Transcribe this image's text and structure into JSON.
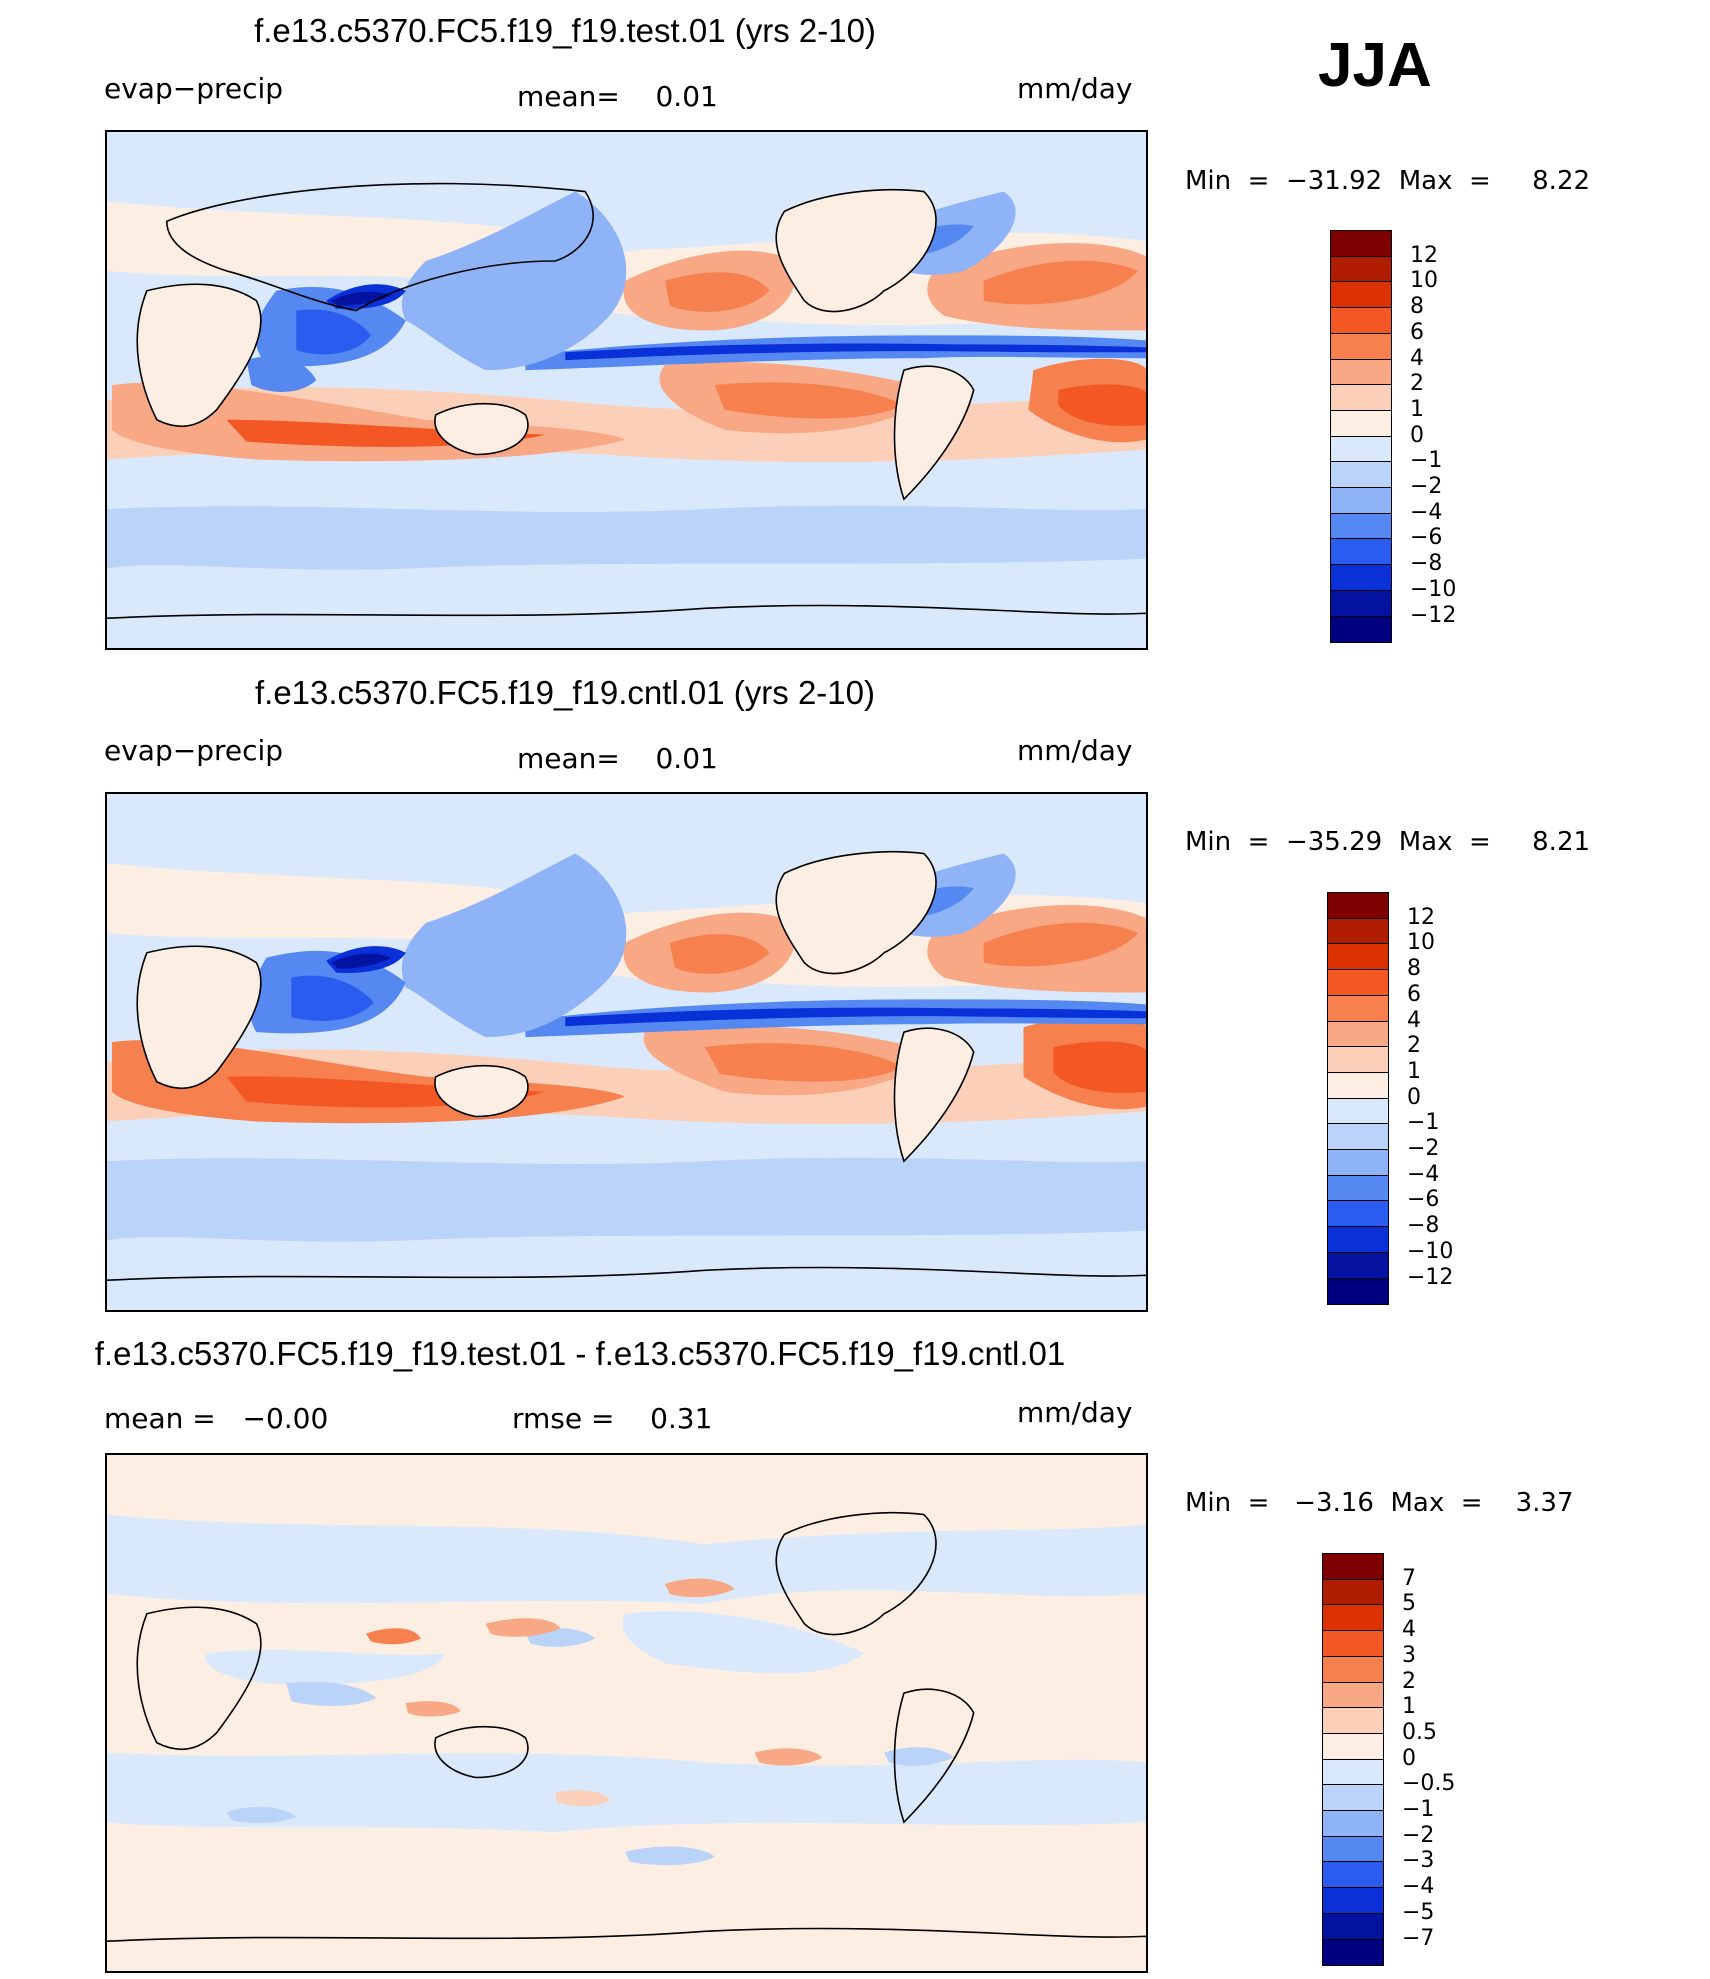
{
  "season": "JJA",
  "panels": [
    {
      "title": "f.e13.c5370.FC5.f19_f19.test.01 (yrs 2-10)",
      "left_label": "evap−precip",
      "center_label": "mean=",
      "center_value": "0.01",
      "units": "mm/day",
      "min_label": "Min",
      "min_value": "−31.92",
      "max_label": "Max",
      "max_value": "8.22",
      "colorbar_levels": [
        "12",
        "10",
        "8",
        "6",
        "4",
        "2",
        "1",
        "0",
        "−1",
        "−2",
        "−4",
        "−6",
        "−8",
        "−10",
        "−12"
      ],
      "colorbar_colors": [
        "#7f0000",
        "#b01c00",
        "#dc3100",
        "#f25724",
        "#f6804e",
        "#f8a884",
        "#fccfb9",
        "#fdeee3",
        "#d9e9fb",
        "#b9d3f9",
        "#8eb3f6",
        "#5588f1",
        "#2a5cf0",
        "#0a30d8",
        "#03139f",
        "#000080"
      ]
    },
    {
      "title": "f.e13.c5370.FC5.f19_f19.cntl.01 (yrs 2-10)",
      "left_label": "evap−precip",
      "center_label": "mean=",
      "center_value": "0.01",
      "units": "mm/day",
      "min_label": "Min",
      "min_value": "−35.29",
      "max_label": "Max",
      "max_value": "8.21",
      "colorbar_levels": [
        "12",
        "10",
        "8",
        "6",
        "4",
        "2",
        "1",
        "0",
        "−1",
        "−2",
        "−4",
        "−6",
        "−8",
        "−10",
        "−12"
      ],
      "colorbar_colors": [
        "#7f0000",
        "#b01c00",
        "#dc3100",
        "#f25724",
        "#f6804e",
        "#f8a884",
        "#fccfb9",
        "#fdeee3",
        "#d9e9fb",
        "#b9d3f9",
        "#8eb3f6",
        "#5588f1",
        "#2a5cf0",
        "#0a30d8",
        "#03139f",
        "#000080"
      ]
    },
    {
      "title": "f.e13.c5370.FC5.f19_f19.test.01 - f.e13.c5370.FC5.f19_f19.cntl.01",
      "left_label": "mean =",
      "left_value": "−0.00",
      "center_label": "rmse =",
      "center_value": "0.31",
      "units": "mm/day",
      "min_label": "Min",
      "min_value": "−3.16",
      "max_label": "Max",
      "max_value": "3.37",
      "colorbar_levels": [
        "7",
        "5",
        "4",
        "3",
        "2",
        "1",
        "0.5",
        "0",
        "−0.5",
        "−1",
        "−2",
        "−3",
        "−4",
        "−5",
        "−7"
      ],
      "colorbar_colors": [
        "#7f0000",
        "#b01c00",
        "#dc3100",
        "#f25724",
        "#f6804e",
        "#f8a884",
        "#fccfb9",
        "#fdeee3",
        "#d9e9fb",
        "#b9d3f9",
        "#8eb3f6",
        "#5588f1",
        "#2a5cf0",
        "#0a30d8",
        "#03139f",
        "#000080"
      ]
    }
  ]
}
